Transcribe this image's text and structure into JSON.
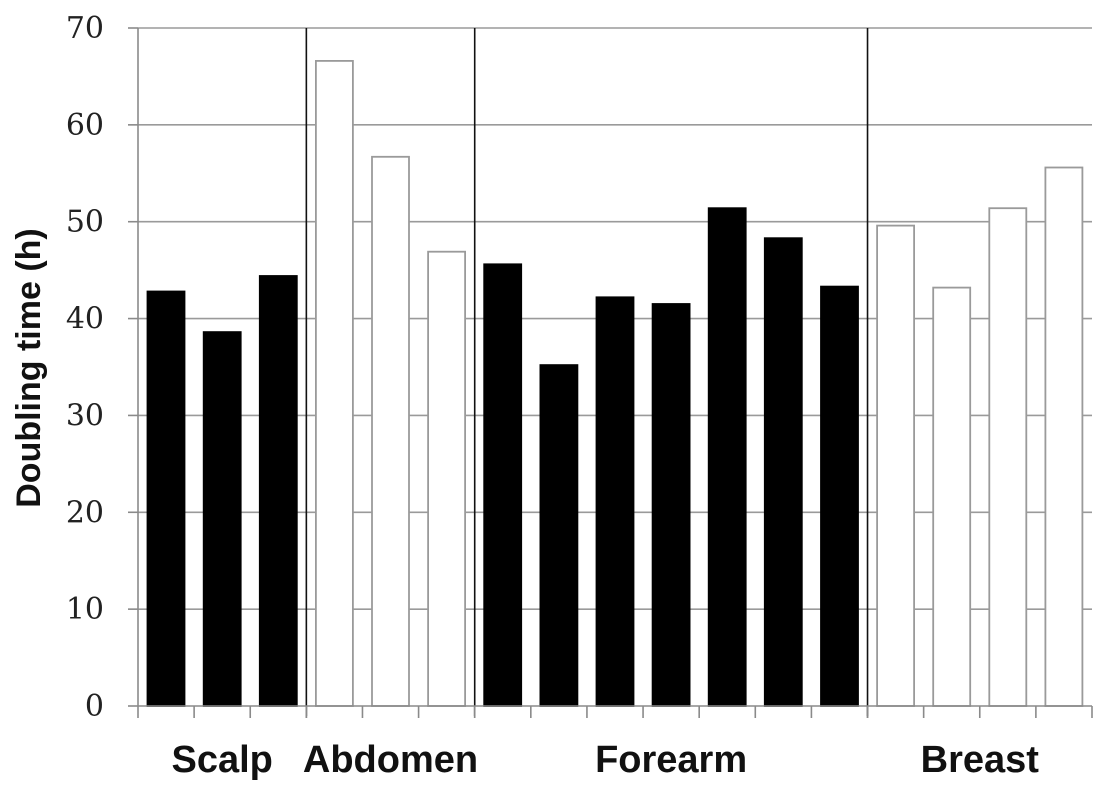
{
  "chart_data": {
    "type": "bar",
    "title": "",
    "xlabel": "",
    "ylabel": "Doubling time (h)",
    "ylim": [
      0,
      70
    ],
    "yticks": [
      "0",
      "10",
      "20",
      "30",
      "40",
      "50",
      "60",
      "70"
    ],
    "grid": true,
    "legend": "none",
    "groups": [
      {
        "label": "Scalp",
        "values": [
          42.8,
          38.6,
          44.4
        ],
        "fill": "#000000"
      },
      {
        "label": "Abdomen",
        "values": [
          66.6,
          56.7,
          46.9
        ],
        "fill": "#ffffff"
      },
      {
        "label": "Forearm",
        "values": [
          45.6,
          35.2,
          42.2,
          41.5,
          51.4,
          48.3,
          43.3
        ],
        "fill": "#000000"
      },
      {
        "label": "Breast",
        "values": [
          49.6,
          43.2,
          51.4,
          55.6
        ],
        "fill": "#ffffff"
      }
    ]
  }
}
